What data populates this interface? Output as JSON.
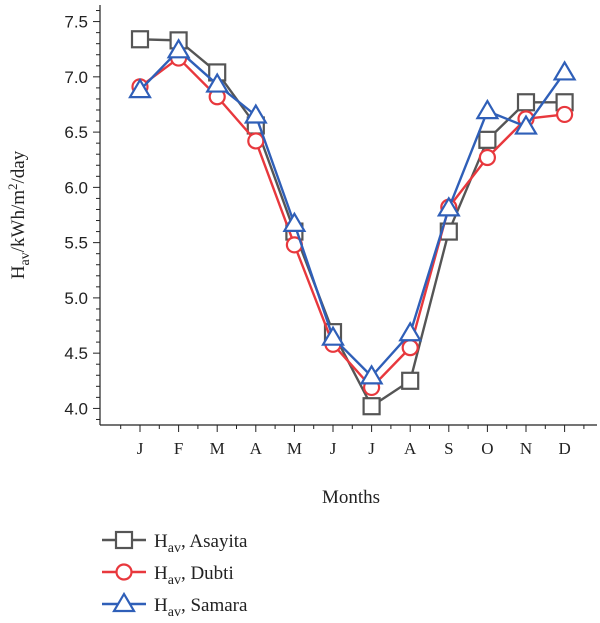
{
  "chart_data": {
    "type": "line",
    "categories": [
      "J",
      "F",
      "M",
      "A",
      "M",
      "J",
      "J",
      "A",
      "S",
      "O",
      "N",
      "D"
    ],
    "xlabel": "Months",
    "ylabel": {
      "base": "H",
      "sub": "av",
      "rest": "/kWh/m",
      "sup": "2",
      "tail": "/day"
    },
    "ylim": [
      3.85,
      7.65
    ],
    "yticks": [
      "4.0",
      "4.5",
      "5.0",
      "5.5",
      "6.0",
      "6.5",
      "7.0",
      "7.5"
    ],
    "grid": false,
    "legend_position": "bottom-left",
    "series": [
      {
        "name": "Asayita",
        "label_base": "H",
        "label_sub": "av",
        "label_rest": ", Asayita",
        "color": "#555555",
        "marker": "square",
        "values": [
          7.34,
          7.33,
          7.04,
          6.56,
          5.6,
          4.69,
          4.02,
          4.25,
          5.6,
          6.43,
          6.77,
          6.77
        ]
      },
      {
        "name": "Dubti",
        "label_base": "H",
        "label_sub": "av",
        "label_rest": ", Dubti",
        "color": "#e8383d",
        "marker": "circle",
        "values": [
          6.91,
          7.17,
          6.82,
          6.42,
          5.48,
          4.58,
          4.19,
          4.55,
          5.82,
          6.27,
          6.62,
          6.66
        ]
      },
      {
        "name": "Samara",
        "label_base": "H",
        "label_sub": "av",
        "label_rest": ", Samara",
        "color": "#2f5fb8",
        "marker": "triangle",
        "values": [
          6.88,
          7.24,
          6.93,
          6.65,
          5.67,
          4.64,
          4.29,
          4.68,
          5.81,
          6.69,
          6.55,
          7.04
        ]
      }
    ]
  }
}
